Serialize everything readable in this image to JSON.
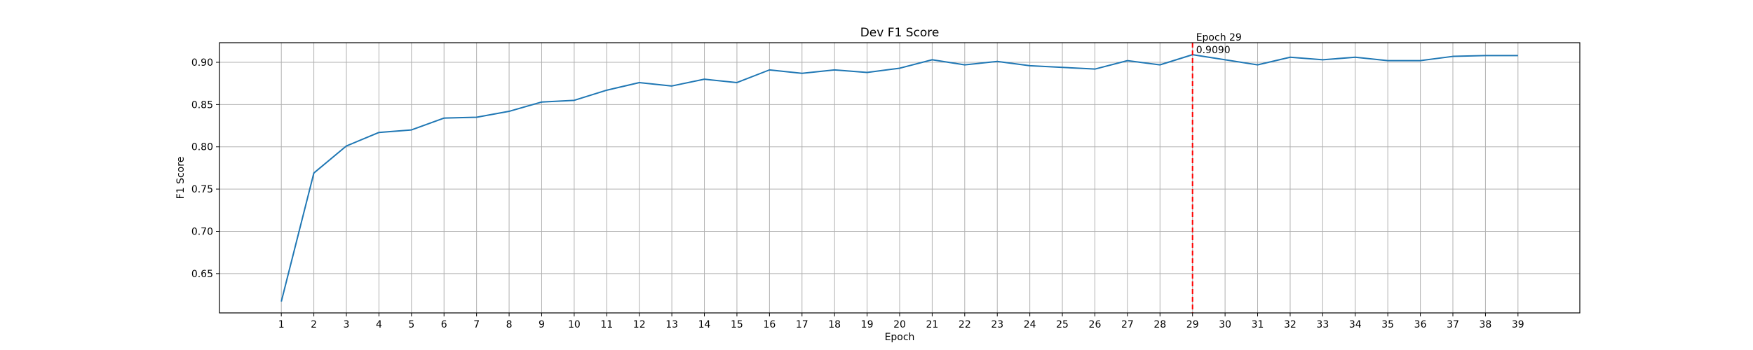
{
  "chart_data": {
    "type": "line",
    "title": "Dev F1 Score",
    "xlabel": "Epoch",
    "ylabel": "F1 Score",
    "x": [
      1,
      2,
      3,
      4,
      5,
      6,
      7,
      8,
      9,
      10,
      11,
      12,
      13,
      14,
      15,
      16,
      17,
      18,
      19,
      20,
      21,
      22,
      23,
      24,
      25,
      26,
      27,
      28,
      29,
      30,
      31,
      32,
      33,
      34,
      35,
      36,
      37,
      38,
      39
    ],
    "y_ticks": [
      "0.65",
      "0.70",
      "0.75",
      "0.80",
      "0.85",
      "0.90"
    ],
    "xlim": [
      -0.9,
      40.9
    ],
    "ylim": [
      0.6035,
      0.9232
    ],
    "grid": true,
    "series": [
      {
        "color": "#1f77b4",
        "values": [
          0.617,
          0.769,
          0.801,
          0.817,
          0.82,
          0.834,
          0.835,
          0.842,
          0.853,
          0.855,
          0.867,
          0.876,
          0.872,
          0.88,
          0.876,
          0.891,
          0.887,
          0.891,
          0.888,
          0.893,
          0.903,
          0.897,
          0.901,
          0.896,
          0.894,
          0.892,
          0.902,
          0.897,
          0.909,
          0.903,
          0.897,
          0.906,
          0.903,
          0.906,
          0.902,
          0.902,
          0.907,
          0.908,
          0.908
        ]
      }
    ],
    "best_marker": {
      "epoch": 29,
      "value": 0.909,
      "color": "#ff0000",
      "label_line1": "Epoch 29",
      "label_line2": "0.9090"
    }
  }
}
